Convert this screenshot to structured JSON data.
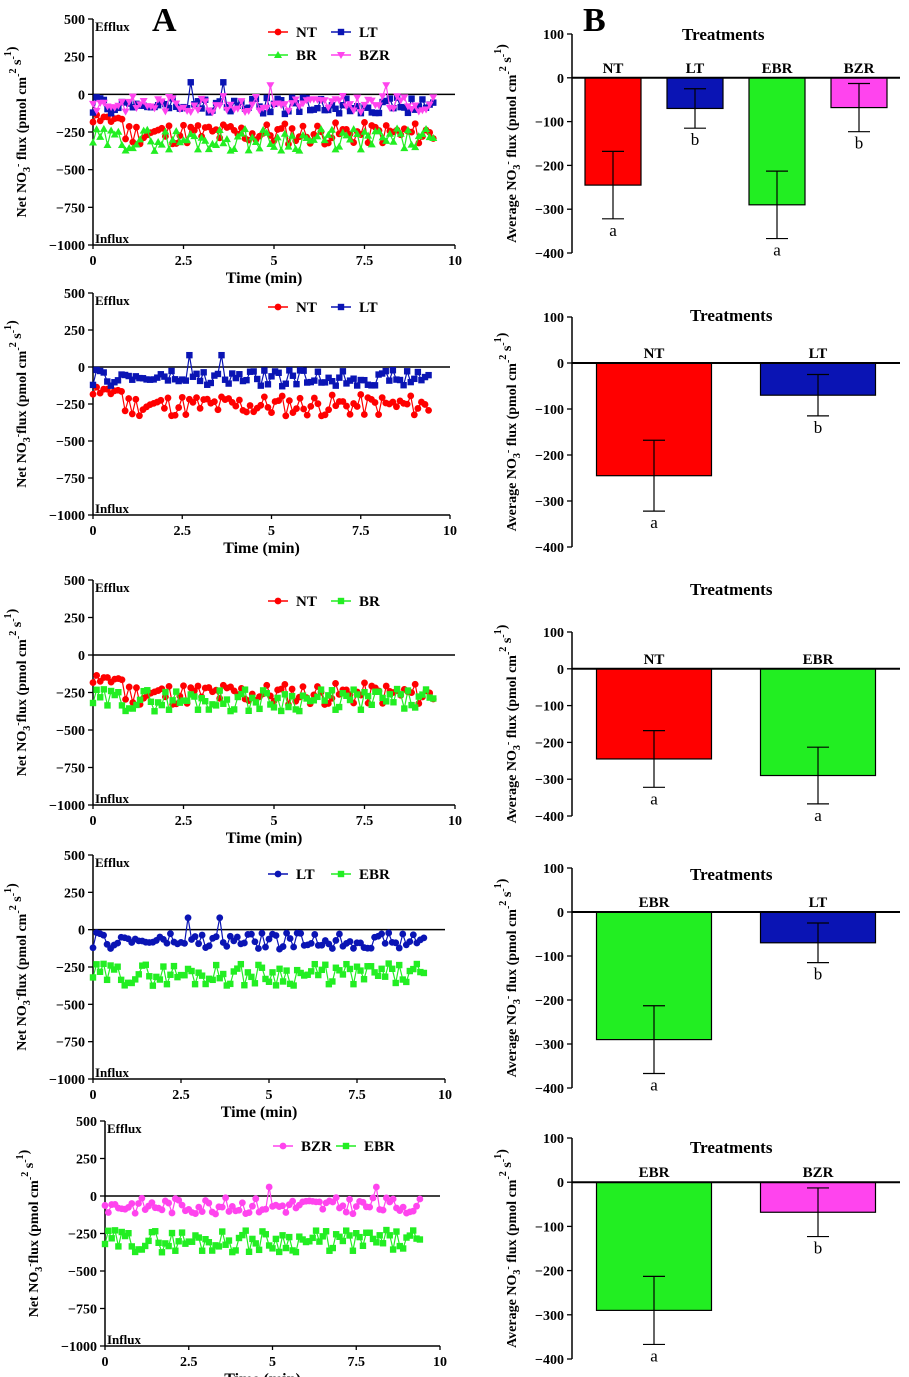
{
  "panels": {
    "A": "A",
    "B": "B"
  },
  "colors": {
    "NT": "#ff0000",
    "LT": "#0a14b4",
    "BR": "#22ee22",
    "EBR": "#22ee22",
    "BZR": "#ff44ee",
    "BZR_line": "#ee66dd"
  },
  "chart_data": [
    {
      "type": "line",
      "panel": "A1",
      "ylabel": "Net NO3⁻ flux (pmol cm⁻² s⁻¹)",
      "xlabel": "Time (min)",
      "xlim": [
        0,
        10
      ],
      "ylim": [
        -1000,
        500
      ],
      "xticks": [
        0,
        2.5,
        5,
        7.5,
        10
      ],
      "yticks": [
        500,
        250,
        0,
        -250,
        -500,
        -750,
        -1000
      ],
      "annotations": {
        "top": "Efflux",
        "bottom": "Influx"
      },
      "legend": [
        {
          "name": "NT",
          "marker": "circle"
        },
        {
          "name": "LT",
          "marker": "square"
        },
        {
          "name": "BR",
          "marker": "triangle-up"
        },
        {
          "name": "BZR",
          "marker": "triangle-down"
        }
      ],
      "series": [
        {
          "name": "NT",
          "profile": "NT"
        },
        {
          "name": "BR",
          "profile": "BR"
        },
        {
          "name": "LT",
          "profile": "LT"
        },
        {
          "name": "BZR",
          "profile": "BZR"
        }
      ]
    },
    {
      "type": "bar",
      "panel": "B1",
      "title": "Treatments",
      "ylabel": "Average NO3⁻ flux (pmol cm⁻² s⁻¹)",
      "ylim": [
        -400,
        100
      ],
      "yticks": [
        100,
        0,
        -100,
        -200,
        -300,
        -400
      ],
      "categories": [
        "NT",
        "LT",
        "EBR",
        "BZR"
      ],
      "values": [
        -245,
        -70,
        -290,
        -68
      ],
      "errors": [
        77,
        45,
        77,
        55
      ],
      "letters": [
        "a",
        "b",
        "a",
        "b"
      ]
    },
    {
      "type": "line",
      "panel": "A2",
      "ylabel": "Net NO3⁻flux (pmol cm⁻² s⁻¹)",
      "xlabel": "Time (min)",
      "xlim": [
        0,
        10
      ],
      "ylim": [
        -1000,
        500
      ],
      "xticks": [
        0,
        2.5,
        5,
        7.5,
        10
      ],
      "yticks": [
        500,
        250,
        0,
        -250,
        -500,
        -750,
        -1000
      ],
      "annotations": {
        "top": "Efflux",
        "bottom": "Influx"
      },
      "legend": [
        {
          "name": "NT",
          "marker": "circle"
        },
        {
          "name": "LT",
          "marker": "square"
        }
      ],
      "series": [
        {
          "name": "NT",
          "profile": "NT"
        },
        {
          "name": "LT",
          "profile": "LT"
        }
      ]
    },
    {
      "type": "bar",
      "panel": "B2",
      "title": "Treatments",
      "ylabel": "Average NO3⁻ flux (pmol cm⁻² s⁻¹)",
      "ylim": [
        -400,
        100
      ],
      "yticks": [
        100,
        0,
        -100,
        -200,
        -300,
        -400
      ],
      "categories": [
        "NT",
        "LT"
      ],
      "values": [
        -245,
        -70
      ],
      "errors": [
        77,
        45
      ],
      "letters": [
        "a",
        "b"
      ]
    },
    {
      "type": "line",
      "panel": "A3",
      "ylabel": "Net NO3⁻flux (pmol cm⁻² s⁻¹)",
      "xlabel": "Time (min)",
      "xlim": [
        0,
        10
      ],
      "ylim": [
        -1000,
        500
      ],
      "xticks": [
        0,
        2.5,
        5,
        7.5,
        10
      ],
      "yticks": [
        500,
        250,
        0,
        -250,
        -500,
        -750,
        -1000
      ],
      "annotations": {
        "top": "Efflux",
        "bottom": "Influx"
      },
      "legend": [
        {
          "name": "NT",
          "marker": "circle"
        },
        {
          "name": "BR",
          "marker": "square"
        }
      ],
      "series": [
        {
          "name": "NT",
          "profile": "NT"
        },
        {
          "name": "BR",
          "profile": "BR"
        }
      ]
    },
    {
      "type": "bar",
      "panel": "B3",
      "title": "Treatments",
      "ylabel": "Average NO3⁻ flux (pmol cm⁻² s⁻¹)",
      "ylim": [
        -400,
        100
      ],
      "yticks": [
        100,
        0,
        -100,
        -200,
        -300,
        -400
      ],
      "categories": [
        "NT",
        "EBR"
      ],
      "values": [
        -245,
        -290
      ],
      "errors": [
        77,
        77
      ],
      "letters": [
        "a",
        "a"
      ]
    },
    {
      "type": "line",
      "panel": "A4",
      "ylabel": "Net NO3⁻flux (pmol cm⁻² s⁻¹)",
      "xlabel": "Time (min)",
      "xlim": [
        0,
        10
      ],
      "ylim": [
        -1000,
        500
      ],
      "xticks": [
        0,
        2.5,
        5,
        7.5,
        10
      ],
      "yticks": [
        500,
        250,
        0,
        -250,
        -500,
        -750,
        -1000
      ],
      "annotations": {
        "top": "Efflux",
        "bottom": "Influx"
      },
      "legend": [
        {
          "name": "LT",
          "marker": "circle"
        },
        {
          "name": "EBR",
          "marker": "square"
        }
      ],
      "series": [
        {
          "name": "LT",
          "profile": "LT"
        },
        {
          "name": "EBR",
          "profile": "BR"
        }
      ]
    },
    {
      "type": "bar",
      "panel": "B4",
      "title": "Treatments",
      "ylabel": "Average NO3⁻ flux (pmol cm⁻² s⁻¹)",
      "ylim": [
        -400,
        100
      ],
      "yticks": [
        100,
        0,
        -100,
        -200,
        -300,
        -400
      ],
      "categories": [
        "EBR",
        "LT"
      ],
      "values": [
        -290,
        -70
      ],
      "errors": [
        77,
        45
      ],
      "letters": [
        "a",
        "b"
      ]
    },
    {
      "type": "line",
      "panel": "A5",
      "ylabel": "Net NO3⁻flux (pmol cm⁻² s⁻¹)",
      "xlabel": "Time (min)",
      "xlim": [
        0,
        10
      ],
      "ylim": [
        -1000,
        500
      ],
      "xticks": [
        0,
        2.5,
        5,
        7.5,
        10
      ],
      "yticks": [
        500,
        250,
        0,
        -250,
        -500,
        -750,
        -1000
      ],
      "annotations": {
        "top": "Efflux",
        "bottom": "Influx"
      },
      "legend": [
        {
          "name": "BZR",
          "marker": "circle"
        },
        {
          "name": "EBR",
          "marker": "square"
        }
      ],
      "series": [
        {
          "name": "BZR",
          "profile": "BZR"
        },
        {
          "name": "EBR",
          "profile": "BR"
        }
      ]
    },
    {
      "type": "bar",
      "panel": "B5",
      "title": "Treatments",
      "ylabel": "Average NO3⁻ flux (pmol cm⁻² s⁻¹)",
      "ylim": [
        -400,
        100
      ],
      "yticks": [
        100,
        0,
        -100,
        -200,
        -300,
        -400
      ],
      "categories": [
        "EBR",
        "BZR"
      ],
      "values": [
        -290,
        -68
      ],
      "errors": [
        77,
        55
      ],
      "letters": [
        "a",
        "b"
      ]
    }
  ]
}
